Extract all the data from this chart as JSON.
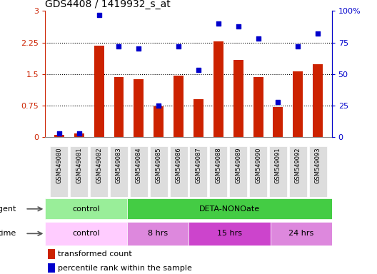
{
  "title": "GDS4408 / 1419932_s_at",
  "samples": [
    "GSM549080",
    "GSM549081",
    "GSM549082",
    "GSM549083",
    "GSM549084",
    "GSM549085",
    "GSM549086",
    "GSM549087",
    "GSM549088",
    "GSM549089",
    "GSM549090",
    "GSM549091",
    "GSM549092",
    "GSM549093"
  ],
  "bar_values": [
    0.05,
    0.08,
    2.18,
    1.42,
    1.38,
    0.73,
    1.46,
    0.9,
    2.28,
    1.83,
    1.43,
    0.72,
    1.56,
    1.73
  ],
  "dot_values": [
    3,
    3,
    97,
    72,
    70,
    25,
    72,
    53,
    90,
    88,
    78,
    28,
    72,
    82
  ],
  "bar_color": "#cc2200",
  "dot_color": "#0000cc",
  "ylim_left": [
    0,
    3
  ],
  "ylim_right": [
    0,
    100
  ],
  "yticks_left": [
    0,
    0.75,
    1.5,
    2.25,
    3
  ],
  "yticks_right": [
    0,
    25,
    50,
    75,
    100
  ],
  "ytick_labels_left": [
    "0",
    "0.75",
    "1.5",
    "2.25",
    "3"
  ],
  "ytick_labels_right": [
    "0",
    "25",
    "50",
    "75",
    "100%"
  ],
  "agent_groups": [
    {
      "label": "control",
      "start": 0,
      "end": 4,
      "color": "#99ee99"
    },
    {
      "label": "DETA-NONOate",
      "start": 4,
      "end": 14,
      "color": "#44cc44"
    }
  ],
  "time_groups": [
    {
      "label": "control",
      "start": 0,
      "end": 4,
      "color": "#ffccff"
    },
    {
      "label": "8 hrs",
      "start": 4,
      "end": 7,
      "color": "#dd88dd"
    },
    {
      "label": "15 hrs",
      "start": 7,
      "end": 11,
      "color": "#cc44cc"
    },
    {
      "label": "24 hrs",
      "start": 11,
      "end": 14,
      "color": "#dd88dd"
    }
  ],
  "legend_bar_label": "transformed count",
  "legend_dot_label": "percentile rank within the sample",
  "agent_label": "agent",
  "time_label": "time",
  "background_color": "#ffffff"
}
